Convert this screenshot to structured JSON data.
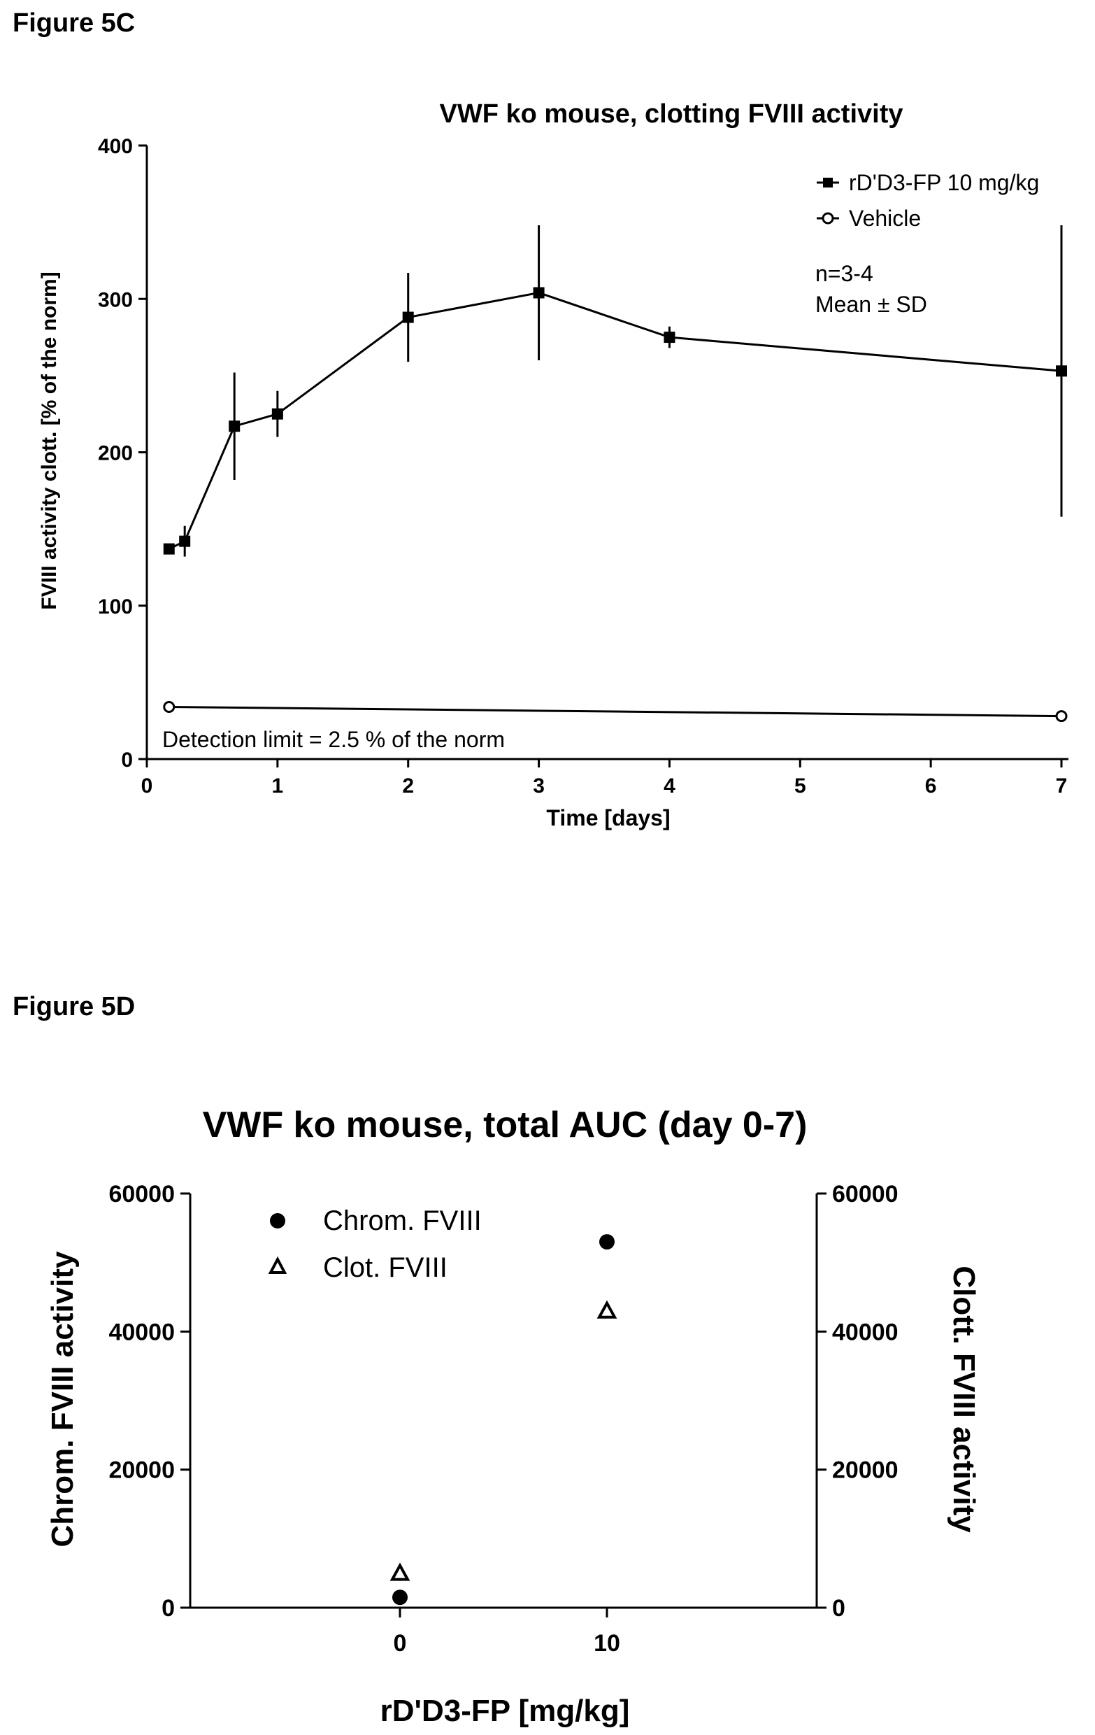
{
  "figure_c": {
    "figure_label": "Figure 5C",
    "detection_note": "Detection limit = 2.5 % of the norm",
    "stats_note": [
      "n=3-4",
      "Mean ± SD"
    ],
    "chart_data": {
      "type": "line",
      "title": "VWF ko mouse, clotting FVIII activity",
      "xlabel": "Time [days]",
      "ylabel": "FVIII activity clott. [% of the norm]",
      "ylim": [
        0,
        400
      ],
      "x_ticks": [
        "0",
        "1",
        "2",
        "3",
        "4",
        "5",
        "6",
        "7"
      ],
      "y_ticks": [
        "0",
        "100",
        "200",
        "300",
        "400"
      ],
      "legend_position": "top-right",
      "series": [
        {
          "name": "rD'D3-FP 10 mg/kg",
          "marker": "square-filled",
          "x": [
            0.17,
            0.29,
            0.67,
            1,
            2,
            3,
            4,
            7
          ],
          "y": [
            137,
            142,
            217,
            225,
            288,
            304,
            275,
            253
          ],
          "sd": [
            3,
            10,
            35,
            15,
            29,
            44,
            7,
            95
          ]
        },
        {
          "name": "Vehicle",
          "marker": "circle-open",
          "x": [
            0.17,
            7
          ],
          "y": [
            34,
            28
          ],
          "sd": [
            3,
            2
          ]
        }
      ]
    }
  },
  "figure_d": {
    "figure_label": "Figure 5D",
    "chart_data": {
      "type": "scatter",
      "title": "VWF ko mouse, total AUC (day 0-7)",
      "xlabel": "rD'D3-FP [mg/kg]",
      "ylabel_left": "Chrom. FVIII activity",
      "ylabel_right": "Clott. FVIII activity",
      "ylim": [
        0,
        60000
      ],
      "categories": [
        "0",
        "10"
      ],
      "y_ticks": [
        "0",
        "20000",
        "40000",
        "60000"
      ],
      "legend_position": "top-left",
      "series": [
        {
          "name": "Chrom. FVIII",
          "marker": "circle-filled",
          "axis": "left",
          "values": [
            1500,
            53000
          ]
        },
        {
          "name": "Clot. FVIII",
          "marker": "triangle-open",
          "axis": "right",
          "values": [
            5000,
            43000
          ]
        }
      ]
    }
  }
}
